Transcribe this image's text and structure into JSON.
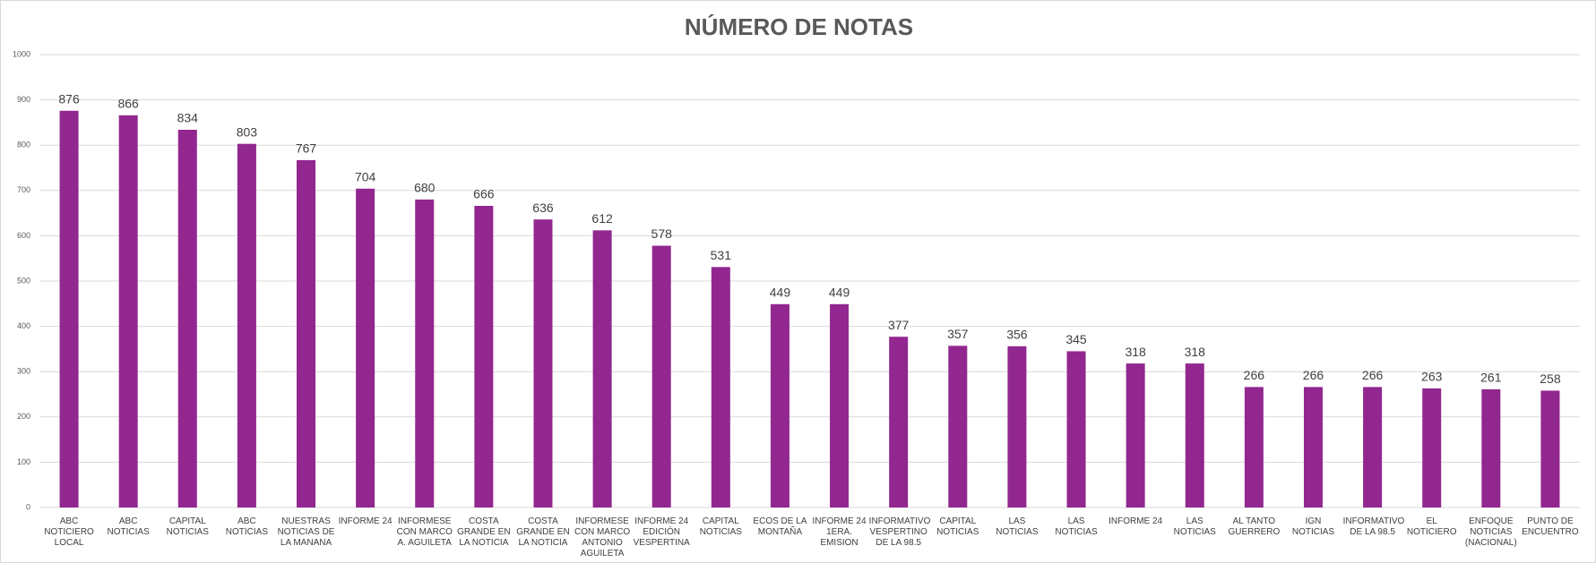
{
  "chart_data": {
    "type": "bar",
    "title": "NÚMERO DE NOTAS",
    "categories": [
      "ABC NOTICIERO LOCAL",
      "ABC NOTICIAS",
      "CAPITAL NOTICIAS",
      "ABC NOTICIAS",
      "NUESTRAS NOTICIAS DE LA MANANA",
      "INFORME 24",
      "INFORMESE CON MARCO A. AGUILETA",
      "COSTA GRANDE EN LA NOTICIA",
      "COSTA GRANDE EN LA NOTICIA",
      "INFORMESE CON MARCO ANTONIO AGUILETA",
      "INFORME 24 EDICIÓN VESPERTINA",
      "CAPITAL NOTICIAS",
      "ECOS DE LA MONTAÑA",
      "INFORME 24 1ERA. EMISION",
      "INFORMATIVO VESPERTINO DE LA 98.5",
      "CAPITAL NOTICIAS",
      "LAS NOTICIAS",
      "LAS NOTICIAS",
      "INFORME 24",
      "LAS NOTICIAS",
      "AL TANTO GUERRERO",
      "IGN NOTICIAS",
      "INFORMATIVO DE LA 98.5",
      "EL NOTICIERO",
      "ENFOQUE NOTICIAS (NACIONAL)",
      "PUNTO DE ENCUENTRO"
    ],
    "values": [
      876,
      866,
      834,
      803,
      767,
      704,
      680,
      666,
      636,
      612,
      578,
      531,
      449,
      449,
      377,
      357,
      356,
      345,
      318,
      318,
      266,
      266,
      266,
      263,
      261,
      258
    ],
    "color": "#92278f",
    "ylim": [
      0,
      1000
    ],
    "yticks": [
      0,
      100,
      200,
      300,
      400,
      500,
      600,
      700,
      800,
      900,
      1000
    ],
    "grid": true
  }
}
